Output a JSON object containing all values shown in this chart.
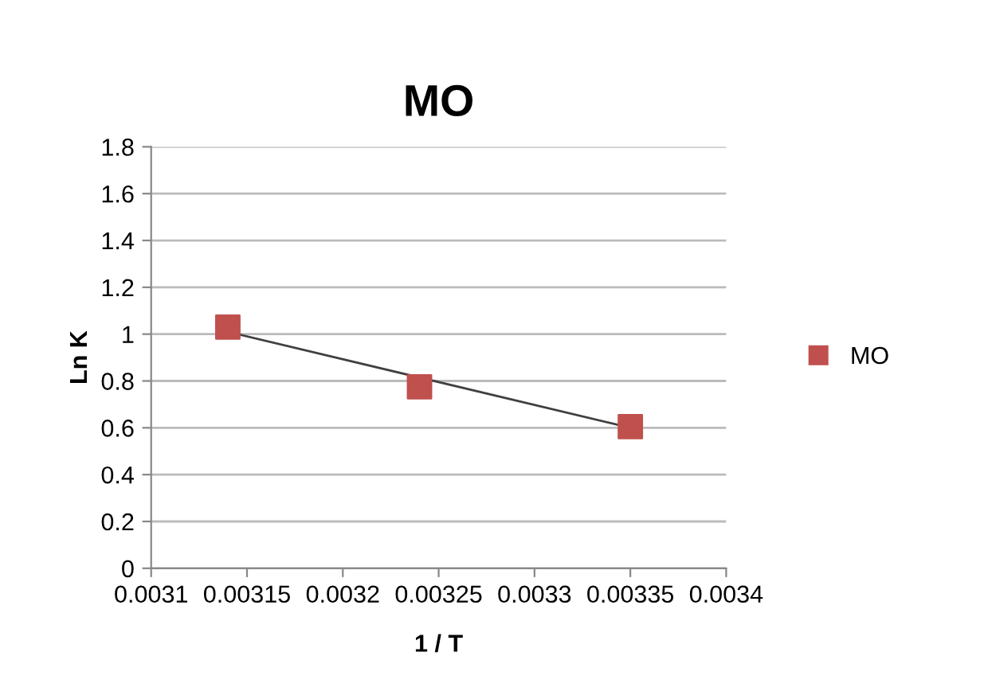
{
  "chart_data": {
    "type": "scatter",
    "title": "MO",
    "xlabel": "1 / T",
    "ylabel": "Ln K",
    "series": [
      {
        "name": "MO",
        "color": "#c0504d",
        "marker": "square",
        "x": [
          0.00314,
          0.00324,
          0.00335
        ],
        "values": [
          1.03,
          0.775,
          0.605
        ]
      },
      {
        "type": "line",
        "color": "#404040",
        "marker": "none",
        "x": [
          0.00314,
          0.00335
        ],
        "values": [
          1.01,
          0.6
        ]
      }
    ],
    "xlim": [
      0.0031,
      0.0034
    ],
    "xticks": [
      0.0031,
      0.00315,
      0.0032,
      0.00325,
      0.0033,
      0.00335,
      0.0034
    ],
    "ylim": [
      0,
      1.8
    ],
    "yticks": [
      0,
      0.2,
      0.4,
      0.6,
      0.8,
      1,
      1.2,
      1.4,
      1.6,
      1.8
    ],
    "grid": "y",
    "legend": "right"
  }
}
